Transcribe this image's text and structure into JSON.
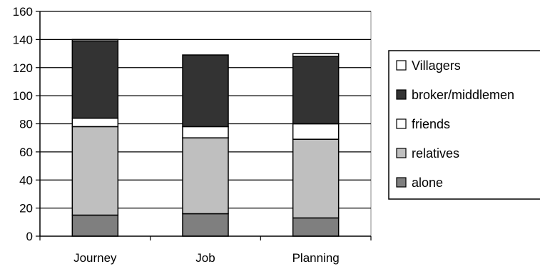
{
  "chart_data": {
    "type": "bar",
    "stacked": true,
    "categories": [
      "Journey",
      "Job",
      "Planning"
    ],
    "series": [
      {
        "name": "alone",
        "values": [
          15,
          16,
          13
        ],
        "color": "#7f7f7f"
      },
      {
        "name": "relatives",
        "values": [
          63,
          54,
          56
        ],
        "color": "#bfbfbf"
      },
      {
        "name": "friends",
        "values": [
          6,
          8,
          11
        ],
        "color": "#ffffff"
      },
      {
        "name": "broker/middlemen",
        "values": [
          55,
          51,
          48
        ],
        "color": "#333333"
      },
      {
        "name": "Villagers",
        "values": [
          1,
          0,
          2
        ],
        "color": "#ffffff"
      }
    ],
    "legend_order": [
      "Villagers",
      "broker/middlemen",
      "friends",
      "relatives",
      "alone"
    ],
    "legend_position": "right",
    "yticks": [
      "0",
      "20",
      "40",
      "60",
      "80",
      "100",
      "120",
      "140",
      "160"
    ],
    "ylim": [
      0,
      160
    ],
    "grid": true,
    "title": "",
    "xlabel": "",
    "ylabel": ""
  }
}
